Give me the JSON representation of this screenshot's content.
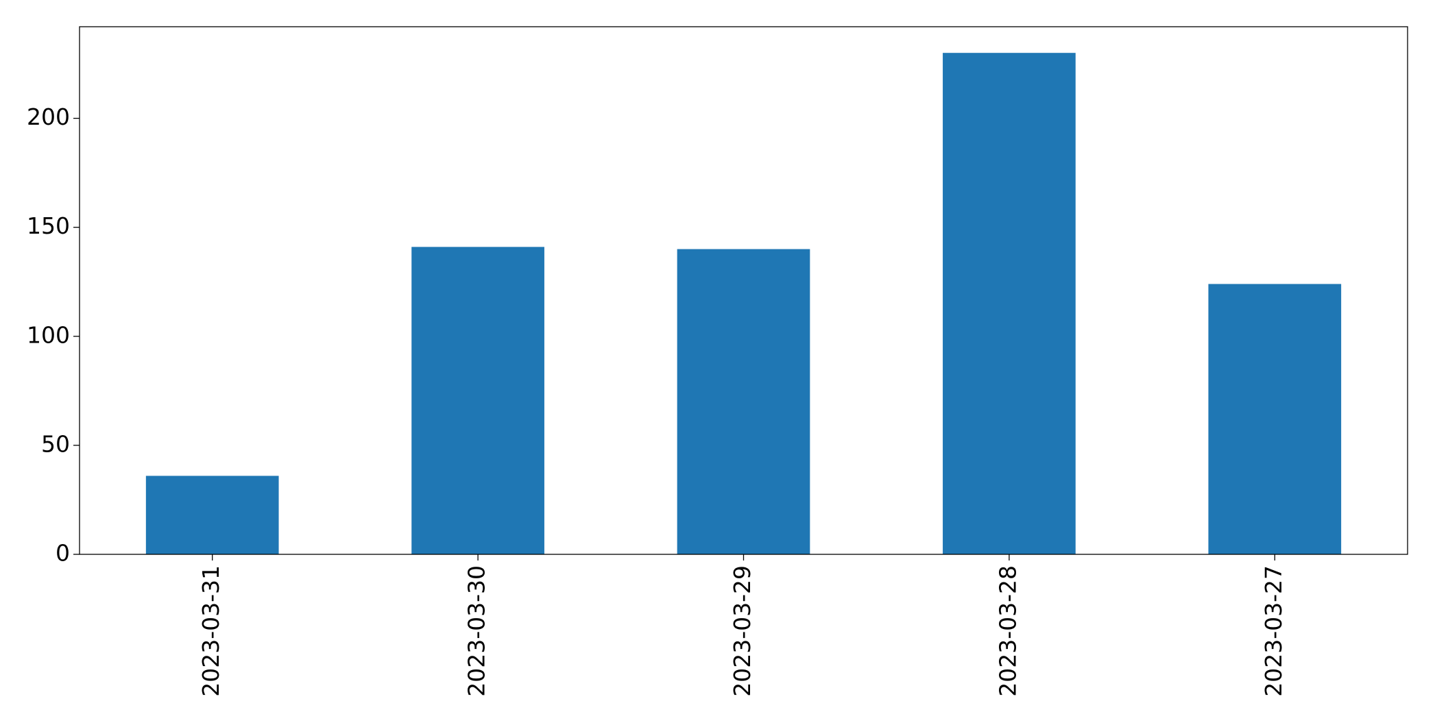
{
  "chart_data": {
    "type": "bar",
    "categories": [
      "2023-03-31",
      "2023-03-30",
      "2023-03-29",
      "2023-03-28",
      "2023-03-27"
    ],
    "values": [
      36,
      141,
      140,
      230,
      124
    ],
    "color": "#1f77b4",
    "ylim": [
      0,
      242
    ],
    "yticks": [
      0,
      50,
      100,
      150,
      200
    ],
    "grid": false
  }
}
